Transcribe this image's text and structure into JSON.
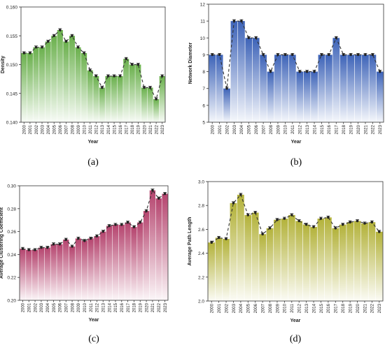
{
  "chart_data": [
    {
      "type": "bar",
      "panel_label": "(a)",
      "color": "#6ab04c",
      "categories": [
        "2000",
        "2001",
        "2002",
        "2003",
        "2004",
        "2005",
        "2006",
        "2007",
        "2008",
        "2009",
        "2010",
        "2011",
        "2012",
        "2013",
        "2014",
        "2015",
        "2016",
        "2017",
        "2018",
        "2019",
        "2020",
        "2021",
        "2022",
        "2023"
      ],
      "values": [
        0.152,
        0.152,
        0.153,
        0.153,
        0.154,
        0.155,
        0.156,
        0.154,
        0.155,
        0.153,
        0.152,
        0.149,
        0.148,
        0.146,
        0.148,
        0.148,
        0.148,
        0.151,
        0.15,
        0.15,
        0.146,
        0.146,
        0.144,
        0.148
      ],
      "xlabel": "Year",
      "ylabel": "Density",
      "ylim": [
        0.14,
        0.16
      ],
      "yticks": [
        "0.140",
        "0.145",
        "0.150",
        "0.155",
        "0.160"
      ],
      "overlay": "dashed line with markers",
      "grid": false
    },
    {
      "type": "bar",
      "panel_label": "(b)",
      "color": "#3d63b8",
      "categories": [
        "2000",
        "2001",
        "2002",
        "2003",
        "2004",
        "2005",
        "2006",
        "2007",
        "2008",
        "2009",
        "2010",
        "2011",
        "2012",
        "2013",
        "2014",
        "2015",
        "2016",
        "2017",
        "2018",
        "2019",
        "2020",
        "2021",
        "2022",
        "2023"
      ],
      "values": [
        9,
        9,
        7,
        11,
        11,
        10,
        10,
        9,
        8,
        9,
        9,
        9,
        8,
        8,
        8,
        9,
        9,
        10,
        9,
        9,
        9,
        9,
        9,
        8
      ],
      "xlabel": "Year",
      "ylabel": "Network Diameter",
      "ylim": [
        5,
        12
      ],
      "yticks": [
        "5",
        "6",
        "7",
        "8",
        "9",
        "10",
        "11",
        "12"
      ],
      "overlay": "dashed line with markers",
      "grid": false
    },
    {
      "type": "bar",
      "panel_label": "(c)",
      "color": "#b5446e",
      "categories": [
        "2000",
        "2001",
        "2002",
        "2003",
        "2004",
        "2005",
        "2006",
        "2007",
        "2008",
        "2009",
        "2010",
        "2011",
        "2012",
        "2013",
        "2014",
        "2015",
        "2016",
        "2017",
        "2018",
        "2019",
        "2020",
        "2021",
        "2022",
        "2023"
      ],
      "values": [
        0.245,
        0.244,
        0.244,
        0.246,
        0.246,
        0.249,
        0.249,
        0.253,
        0.247,
        0.254,
        0.252,
        0.254,
        0.256,
        0.26,
        0.265,
        0.266,
        0.266,
        0.268,
        0.264,
        0.268,
        0.278,
        0.296,
        0.289,
        0.293
      ],
      "xlabel": "Year",
      "ylabel": "Average Clustering Coefficient",
      "ylim": [
        0.2,
        0.3
      ],
      "yticks": [
        "0.20",
        "0.22",
        "0.24",
        "0.26",
        "0.28",
        "0.30"
      ],
      "overlay": "dashed line with markers",
      "grid": false
    },
    {
      "type": "bar",
      "panel_label": "(d)",
      "color": "#b3b23a",
      "categories": [
        "2000",
        "2001",
        "2002",
        "2003",
        "2004",
        "2005",
        "2006",
        "2007",
        "2008",
        "2009",
        "2010",
        "2011",
        "2012",
        "2013",
        "2014",
        "2015",
        "2016",
        "2017",
        "2018",
        "2019",
        "2020",
        "2021",
        "2022",
        "2023"
      ],
      "values": [
        2.49,
        2.53,
        2.52,
        2.82,
        2.89,
        2.72,
        2.74,
        2.56,
        2.61,
        2.68,
        2.69,
        2.72,
        2.67,
        2.64,
        2.62,
        2.69,
        2.7,
        2.61,
        2.64,
        2.66,
        2.67,
        2.65,
        2.66,
        2.58
      ],
      "xlabel": "Year",
      "ylabel": "Average Path Length",
      "ylim": [
        2.0,
        3.0
      ],
      "yticks": [
        "2.0",
        "2.2",
        "2.4",
        "2.6",
        "2.8",
        "3.0"
      ],
      "overlay": "dashed line with markers",
      "grid": false
    }
  ]
}
